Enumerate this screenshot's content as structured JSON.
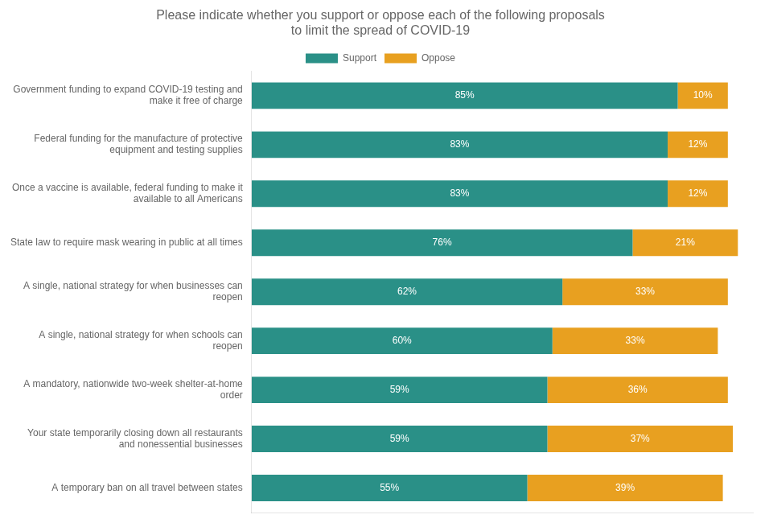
{
  "chart_data": {
    "type": "bar",
    "orientation": "horizontal",
    "stacked": true,
    "title": "Please indicate whether you support or oppose each of the following proposals\nto limit the spread of COVID-19",
    "categories": [
      "Government funding to expand COVID-19 testing and\nmake it free of charge",
      "Federal funding for the manufacture of protective\nequipment and testing supplies",
      "Once a vaccine is available, federal funding to make it\navailable to all Americans",
      "State law to require mask wearing in public at all times",
      "A single, national strategy for when businesses can\nreopen",
      "A single, national strategy for when schools can\nreopen",
      "A mandatory, nationwide two-week shelter-at-home\norder",
      "Your state temporarily closing down all restaurants\nand nonessential businesses",
      "A temporary ban on all travel between states"
    ],
    "series": [
      {
        "name": "Support",
        "color": "#2a9087",
        "values": [
          85,
          83,
          83,
          76,
          62,
          60,
          59,
          59,
          55
        ],
        "value_labels": [
          "85%",
          "83%",
          "83%",
          "76%",
          "62%",
          "60%",
          "59%",
          "59%",
          "55%"
        ]
      },
      {
        "name": "Oppose",
        "color": "#e8a020",
        "values": [
          10,
          12,
          12,
          21,
          33,
          33,
          36,
          37,
          39
        ],
        "value_labels": [
          "10%",
          "12%",
          "12%",
          "21%",
          "33%",
          "33%",
          "36%",
          "37%",
          "39%"
        ]
      }
    ],
    "xlim": [
      0,
      100
    ],
    "data_labels": true,
    "grid": false,
    "legend": "top",
    "tick_labels": "y"
  }
}
